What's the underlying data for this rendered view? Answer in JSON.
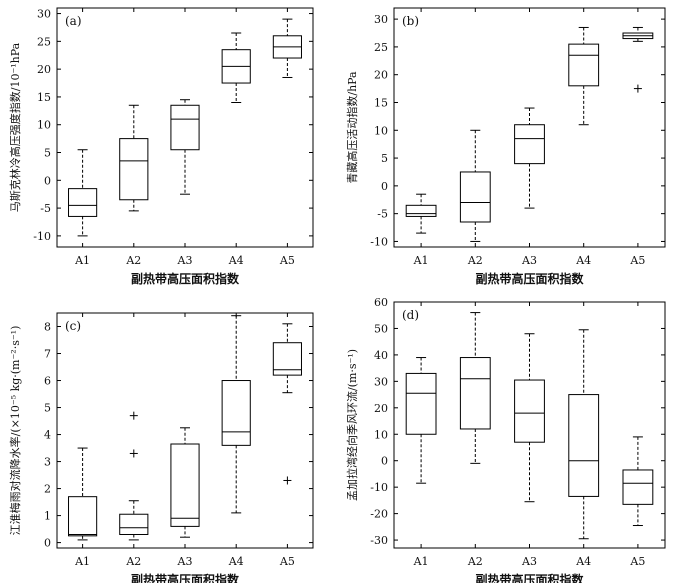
{
  "chart_data": [
    {
      "type": "box",
      "panel_label": "(a)",
      "ylabel": "马斯克林冷高压强度指数/10⁻¹hPa",
      "xlabel": "副热带高压面积指数",
      "categories": [
        "A1",
        "A2",
        "A3",
        "A4",
        "A5"
      ],
      "ylim": [
        -12,
        31
      ],
      "yticks": [
        -10,
        -5,
        0,
        5,
        10,
        15,
        20,
        25,
        30
      ],
      "boxes": [
        {
          "min": -10,
          "q1": -6.5,
          "median": -4.5,
          "q3": -1.5,
          "max": 5.5,
          "outliers": []
        },
        {
          "min": -5.5,
          "q1": -3.5,
          "median": 3.5,
          "q3": 7.5,
          "max": 13.5,
          "outliers": []
        },
        {
          "min": -2.5,
          "q1": 5.5,
          "median": 11,
          "q3": 13.5,
          "max": 14.5,
          "outliers": []
        },
        {
          "min": 14,
          "q1": 17.5,
          "median": 20.5,
          "q3": 23.5,
          "max": 26.5,
          "outliers": []
        },
        {
          "min": 18.5,
          "q1": 22,
          "median": 24,
          "q3": 26,
          "max": 29,
          "outliers": []
        }
      ]
    },
    {
      "type": "box",
      "panel_label": "(b)",
      "ylabel": "青藏高压活动指数/hPa",
      "xlabel": "副热带高压面积指数",
      "categories": [
        "A1",
        "A2",
        "A3",
        "A4",
        "A5"
      ],
      "ylim": [
        -11,
        32
      ],
      "yticks": [
        -10,
        -5,
        0,
        5,
        10,
        15,
        20,
        25,
        30
      ],
      "boxes": [
        {
          "min": -8.5,
          "q1": -5.5,
          "median": -5,
          "q3": -3.5,
          "max": -1.5,
          "outliers": []
        },
        {
          "min": -10,
          "q1": -6.5,
          "median": -3,
          "q3": 2.5,
          "max": 10,
          "outliers": []
        },
        {
          "min": -4,
          "q1": 4,
          "median": 8.5,
          "q3": 11,
          "max": 14,
          "outliers": []
        },
        {
          "min": 11,
          "q1": 18,
          "median": 23.5,
          "q3": 25.5,
          "max": 28.5,
          "outliers": []
        },
        {
          "min": 26,
          "q1": 26.5,
          "median": 27,
          "q3": 27.5,
          "max": 28.5,
          "outliers": [
            17.5
          ]
        }
      ]
    },
    {
      "type": "box",
      "panel_label": "(c)",
      "ylabel": "江淮梅雨对流降水率/(×10⁻⁵ kg·(m⁻²·s⁻¹)",
      "xlabel": "副热带高压面积指数",
      "categories": [
        "A1",
        "A2",
        "A3",
        "A4",
        "A5"
      ],
      "ylim": [
        -0.2,
        8.5
      ],
      "yticks": [
        0,
        1,
        2,
        3,
        4,
        5,
        6,
        7,
        8
      ],
      "boxes": [
        {
          "min": 0.1,
          "q1": 0.25,
          "median": 0.3,
          "q3": 1.7,
          "max": 3.5,
          "outliers": []
        },
        {
          "min": 0.1,
          "q1": 0.3,
          "median": 0.55,
          "q3": 1.05,
          "max": 1.55,
          "outliers": [
            3.3,
            4.7
          ]
        },
        {
          "min": 0.2,
          "q1": 0.6,
          "median": 0.9,
          "q3": 3.65,
          "max": 4.25,
          "outliers": []
        },
        {
          "min": 1.1,
          "q1": 3.6,
          "median": 4.1,
          "q3": 6,
          "max": 8.4,
          "outliers": []
        },
        {
          "min": 5.55,
          "q1": 6.2,
          "median": 6.4,
          "q3": 7.4,
          "max": 8.1,
          "outliers": [
            2.3
          ]
        }
      ]
    },
    {
      "type": "box",
      "panel_label": "(d)",
      "ylabel": "孟加拉湾经向季风环流/(m·s⁻¹)",
      "xlabel": "副热带高压面积指数",
      "categories": [
        "A1",
        "A2",
        "A3",
        "A4",
        "A5"
      ],
      "ylim": [
        -33,
        60
      ],
      "yticks": [
        -30,
        -20,
        -10,
        0,
        10,
        20,
        30,
        40,
        50,
        60
      ],
      "boxes": [
        {
          "min": -8.5,
          "q1": 10,
          "median": 25.5,
          "q3": 33,
          "max": 39,
          "outliers": []
        },
        {
          "min": -1,
          "q1": 12,
          "median": 31,
          "q3": 39,
          "max": 56,
          "outliers": []
        },
        {
          "min": -15.5,
          "q1": 7,
          "median": 18,
          "q3": 30.5,
          "max": 48,
          "outliers": []
        },
        {
          "min": -29.5,
          "q1": -13.5,
          "median": 0,
          "q3": 25,
          "max": 49.5,
          "outliers": []
        },
        {
          "min": -24.5,
          "q1": -16.5,
          "median": -8.5,
          "q3": -3.5,
          "max": 9,
          "outliers": []
        }
      ]
    }
  ]
}
